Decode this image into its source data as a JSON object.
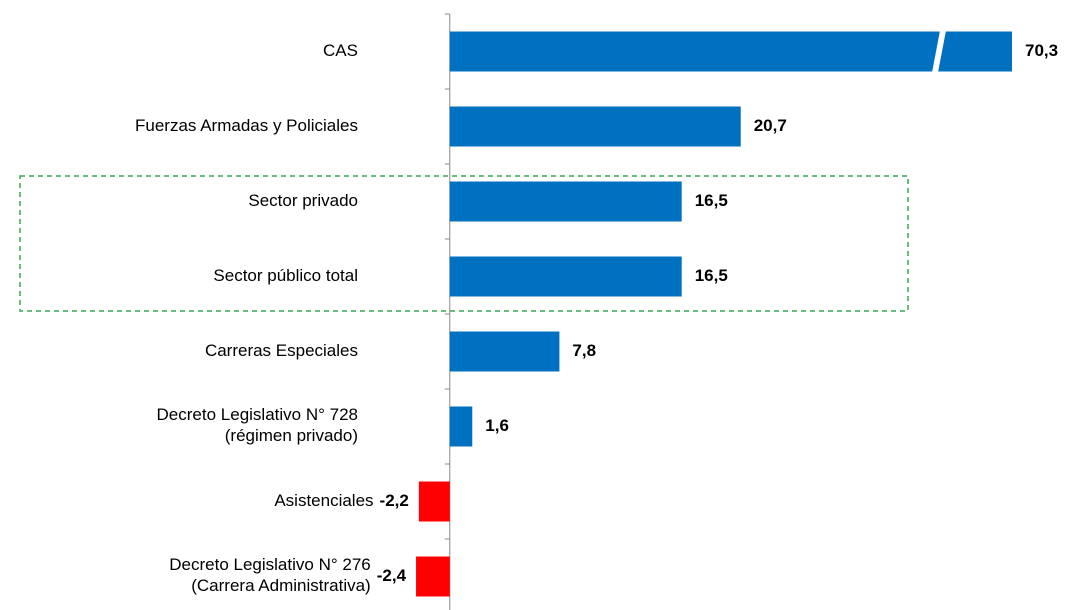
{
  "chart_data": {
    "type": "barh",
    "categories": [
      "CAS",
      "Fuerzas Armadas y Policiales",
      "Sector privado",
      "Sector público total",
      "Carreras Especiales",
      "Decreto Legislativo N° 728\n(régimen privado)",
      "Asistenciales",
      "Decreto Legislativo N° 276\n(Carrera Administrativa)"
    ],
    "values": [
      70.3,
      20.7,
      16.5,
      16.5,
      7.8,
      1.6,
      -2.2,
      -2.4
    ],
    "value_labels": [
      "70,3",
      "20,7",
      "16,5",
      "16,5",
      "7,8",
      "1,6",
      "-2,2",
      "-2,4"
    ],
    "positive_color": "#0070c0",
    "negative_color": "#ff0000",
    "xlim": [
      -32,
      40
    ]
  }
}
